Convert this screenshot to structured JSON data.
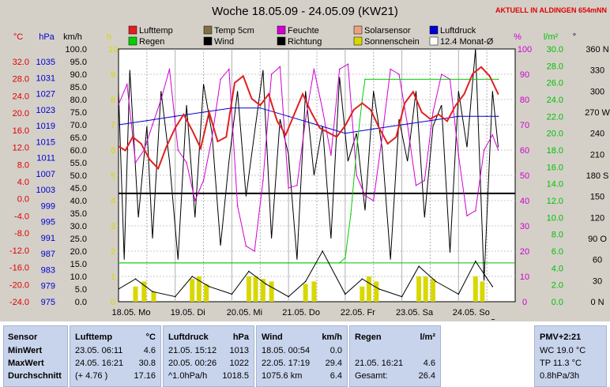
{
  "header": {
    "title": "Woche 18.05.09 - 24.05.09 (KW21)",
    "live": "AKTUELL IN ALDINGEN 654mNN"
  },
  "axes": {
    "left_units": [
      "°C",
      "hPa",
      "km/h",
      "h"
    ],
    "right_units": [
      "%",
      "l/m²",
      "°"
    ],
    "temp_ticks": [
      "32.0",
      "28.0",
      "24.0",
      "20.0",
      "16.0",
      "12.0",
      "8.0",
      "4.0",
      "0.0",
      "-4.0",
      "-8.0",
      "-12.0",
      "-16.0",
      "-20.0",
      "-24.0"
    ],
    "pressure_ticks": [
      "1035",
      "1031",
      "1027",
      "1023",
      "1019",
      "1015",
      "1011",
      "1007",
      "1003",
      "999",
      "995",
      "991",
      "987",
      "983",
      "979",
      "975"
    ],
    "speed_ticks": [
      "100.0",
      "95.0",
      "90.0",
      "85.0",
      "80.0",
      "75.0",
      "70.0",
      "65.0",
      "60.0",
      "55.0",
      "50.0",
      "45.0",
      "40.0",
      "35.0",
      "30.0",
      "25.0",
      "20.0",
      "15.0",
      "10.0",
      "5.0",
      "0.0"
    ],
    "hour_ticks": [
      "10",
      "9",
      "8",
      "7",
      "6",
      "5",
      "4",
      "3",
      "2",
      "1",
      "0"
    ],
    "percent_ticks": [
      "100",
      "90",
      "80",
      "70",
      "60",
      "50",
      "40",
      "30",
      "20",
      "10",
      "0"
    ],
    "rain_ticks": [
      "30.0",
      "28.0",
      "26.0",
      "24.0",
      "22.0",
      "20.0",
      "18.0",
      "16.0",
      "14.0",
      "12.0",
      "10.0",
      "8.0",
      "6.0",
      "4.0",
      "2.0",
      "0.0"
    ],
    "degree_ticks": [
      "360 N",
      "330",
      "300",
      "270 W",
      "240",
      "210",
      "180 S",
      "150",
      "120",
      "90 O",
      "60",
      "30",
      "0 N"
    ],
    "day_labels": [
      "18.05. Mo",
      "19.05. Di",
      "20.05. Mi",
      "21.05. Do",
      "22.05. Fr",
      "23.05. Sa",
      "24.05. So"
    ]
  },
  "legend": [
    {
      "label": "Lufttemp",
      "color": "#e02020"
    },
    {
      "label": "Temp 5cm",
      "color": "#807040"
    },
    {
      "label": "Feuchte",
      "color": "#d000d0"
    },
    {
      "label": "Solarsensor",
      "color": "#f0a080"
    },
    {
      "label": "Luftdruck",
      "color": "#0000d0"
    },
    {
      "label": "Regen",
      "color": "#00d000"
    },
    {
      "label": "Wind",
      "color": "#000000"
    },
    {
      "label": "Richtung",
      "color": "#000000"
    },
    {
      "label": "Sonnenschein",
      "color": "#d8d800"
    },
    {
      "label": "12.4 Monat-Ø",
      "color": "#ffffff"
    }
  ],
  "chart_data": {
    "type": "line",
    "x_unit": "day (18.05.09 = 0)",
    "xlim": [
      0,
      7
    ],
    "series": [
      {
        "name": "Lufttemp",
        "axis": "°C",
        "ylim": [
          -24,
          32
        ],
        "x": [
          0,
          0.12,
          0.25,
          0.4,
          0.55,
          0.7,
          0.85,
          1.0,
          1.15,
          1.3,
          1.45,
          1.6,
          1.75,
          1.9,
          2.05,
          2.2,
          2.35,
          2.5,
          2.65,
          2.8,
          2.95,
          3.1,
          3.25,
          3.4,
          3.55,
          3.7,
          3.85,
          4.0,
          4.15,
          4.3,
          4.45,
          4.6,
          4.75,
          4.9,
          5.05,
          5.2,
          5.35,
          5.5,
          5.65,
          5.8,
          5.95,
          6.1,
          6.25,
          6.4,
          6.55,
          6.7
        ],
        "values": [
          10.5,
          9.5,
          12.5,
          11,
          7.5,
          5.5,
          10.5,
          14.5,
          17.5,
          14,
          10,
          18,
          11.5,
          12.5,
          24.5,
          26,
          21,
          19.5,
          22,
          16,
          13,
          17.5,
          22,
          18,
          14.5,
          13.5,
          12.5,
          15,
          18.5,
          20,
          18.5,
          14.5,
          11,
          12.5,
          20,
          22.5,
          18,
          16.5,
          17.5,
          16,
          19.5,
          22,
          26.5,
          28,
          26,
          22
        ]
      },
      {
        "name": "Feuchte",
        "axis": "%",
        "x": [
          0,
          0.15,
          0.3,
          0.45,
          0.6,
          0.75,
          0.9,
          1.05,
          1.2,
          1.35,
          1.5,
          1.65,
          1.8,
          1.95,
          2.1,
          2.25,
          2.4,
          2.55,
          2.7,
          2.85,
          3.0,
          3.15,
          3.3,
          3.45,
          3.6,
          3.75,
          3.9,
          4.05,
          4.2,
          4.35,
          4.5,
          4.65,
          4.8,
          4.95,
          5.1,
          5.25,
          5.4,
          5.55,
          5.7,
          5.85,
          6.0,
          6.15,
          6.3,
          6.45,
          6.6,
          6.7
        ],
        "values": [
          78,
          86,
          55,
          60,
          70,
          80,
          92,
          60,
          55,
          40,
          48,
          65,
          88,
          92,
          38,
          22,
          20,
          48,
          90,
          93,
          45,
          46,
          72,
          92,
          76,
          58,
          92,
          94,
          50,
          42,
          40,
          65,
          92,
          90,
          70,
          46,
          48,
          75,
          90,
          88,
          58,
          34,
          36,
          60,
          66,
          60
        ]
      },
      {
        "name": "Luftdruck",
        "axis": "hPa",
        "ylim": [
          975,
          1035
        ],
        "x": [
          0,
          0.5,
          1.0,
          1.5,
          2.0,
          2.5,
          3.0,
          3.5,
          4.0,
          4.5,
          5.0,
          5.5,
          6.0,
          6.5,
          6.7
        ],
        "values": [
          1017,
          1018,
          1019,
          1020,
          1021,
          1021,
          1019,
          1017,
          1015,
          1016,
          1017,
          1018,
          1019,
          1019,
          1019
        ]
      },
      {
        "name": "Regen",
        "axis": "l/m²",
        "x": [
          0,
          3.9,
          4.0,
          4.1,
          4.2,
          4.3,
          4.35,
          6.7
        ],
        "values": [
          4.6,
          4.6,
          5.2,
          10.4,
          18,
          24,
          26.4,
          26.4
        ]
      },
      {
        "name": "Sonnenschein",
        "axis": "h",
        "x": [
          0.3,
          0.45,
          0.62,
          1.3,
          1.42,
          1.55,
          2.3,
          2.42,
          2.55,
          2.7,
          3.3,
          3.45,
          4.3,
          4.42,
          4.55,
          5.3,
          5.42,
          5.55,
          6.3,
          6.42
        ],
        "values": [
          0.6,
          0.8,
          0.4,
          0.9,
          1.0,
          0.7,
          1.0,
          1.0,
          0.9,
          0.8,
          0.7,
          0.8,
          0.6,
          1.0,
          0.8,
          1.0,
          1.0,
          0.9,
          1.0,
          0.8
        ]
      },
      {
        "name": "Wind",
        "axis": "km/h",
        "x": [
          0,
          0.3,
          0.6,
          1.0,
          1.3,
          1.6,
          2.0,
          2.3,
          2.6,
          3.0,
          3.3,
          3.6,
          4.0,
          4.3,
          4.6,
          5.0,
          5.3,
          5.6,
          6.0,
          6.3,
          6.6
        ],
        "values": [
          5,
          9,
          4,
          2,
          10,
          6,
          3,
          12,
          7,
          2,
          8,
          20,
          3,
          9,
          5,
          2,
          14,
          8,
          3,
          16,
          6
        ]
      },
      {
        "name": "Richtung",
        "axis": "°",
        "x": [
          0,
          0.1,
          0.2,
          0.35,
          0.5,
          0.6,
          0.75,
          0.9,
          1.05,
          1.2,
          1.35,
          1.5,
          1.65,
          1.8,
          1.95,
          2.1,
          2.25,
          2.4,
          2.55,
          2.7,
          2.85,
          3.0,
          3.15,
          3.3,
          3.45,
          3.6,
          3.75,
          3.9,
          4.05,
          4.2,
          4.35,
          4.5,
          4.65,
          4.8,
          4.95,
          5.1,
          5.25,
          5.4,
          5.55,
          5.7,
          5.85,
          6.0,
          6.15,
          6.3,
          6.45,
          6.6,
          6.7
        ],
        "values": [
          300,
          60,
          330,
          120,
          250,
          90,
          300,
          200,
          60,
          280,
          120,
          310,
          240,
          80,
          200,
          300,
          150,
          240,
          330,
          90,
          260,
          210,
          60,
          300,
          180,
          250,
          90,
          320,
          200,
          240,
          130,
          300,
          220,
          60,
          260,
          200,
          300,
          120,
          250,
          280,
          70,
          300,
          220,
          360,
          30,
          300,
          220
        ]
      }
    ],
    "reference_lines": [
      {
        "name": "0.0 °C",
        "axis": "°C",
        "value": 0
      },
      {
        "name": "Regen 21.05.",
        "axis": "l/m²",
        "value": 4.6
      }
    ]
  },
  "table": {
    "sensor": {
      "head": "Sensor",
      "min": "MinWert",
      "max": "MaxWert",
      "avg": "Durchschnitt"
    },
    "temp": {
      "head": "Lufttemp",
      "unit": "°C",
      "min_time": "23.05.  06:11",
      "min_val": "4.6",
      "max_time": "24.05.  16:21",
      "max_val": "30.8",
      "avg_note": "(+ 4.76 )",
      "avg_val": "17.16"
    },
    "pressure": {
      "head": "Luftdruck",
      "unit": "hPa",
      "min_time": "21.05.  15:12",
      "min_val": "1013",
      "max_time": "20.05.  00:26",
      "max_val": "1022",
      "avg_note": "^1.0hPa/h",
      "avg_val": "1018.5"
    },
    "wind": {
      "head": "Wind",
      "unit": "km/h",
      "min_time": "18.05.  00:54",
      "min_val": "0.0",
      "max_time": "22.05.  17:19",
      "max_val": "29.4",
      "avg_note": "1075.6 km",
      "avg_val": "6.4"
    },
    "rain": {
      "head": "Regen",
      "unit": "l/m²",
      "max_time": "21.05.  16:21",
      "max_val": "4.6",
      "total_label": "Gesamt:",
      "total_val": "26.4"
    },
    "pmv": {
      "head": "PMV+2:21",
      "l1": "WC 19.0 °C",
      "l2": "TP 11.3 °C",
      "l3": "0.8hPa/3h"
    }
  }
}
